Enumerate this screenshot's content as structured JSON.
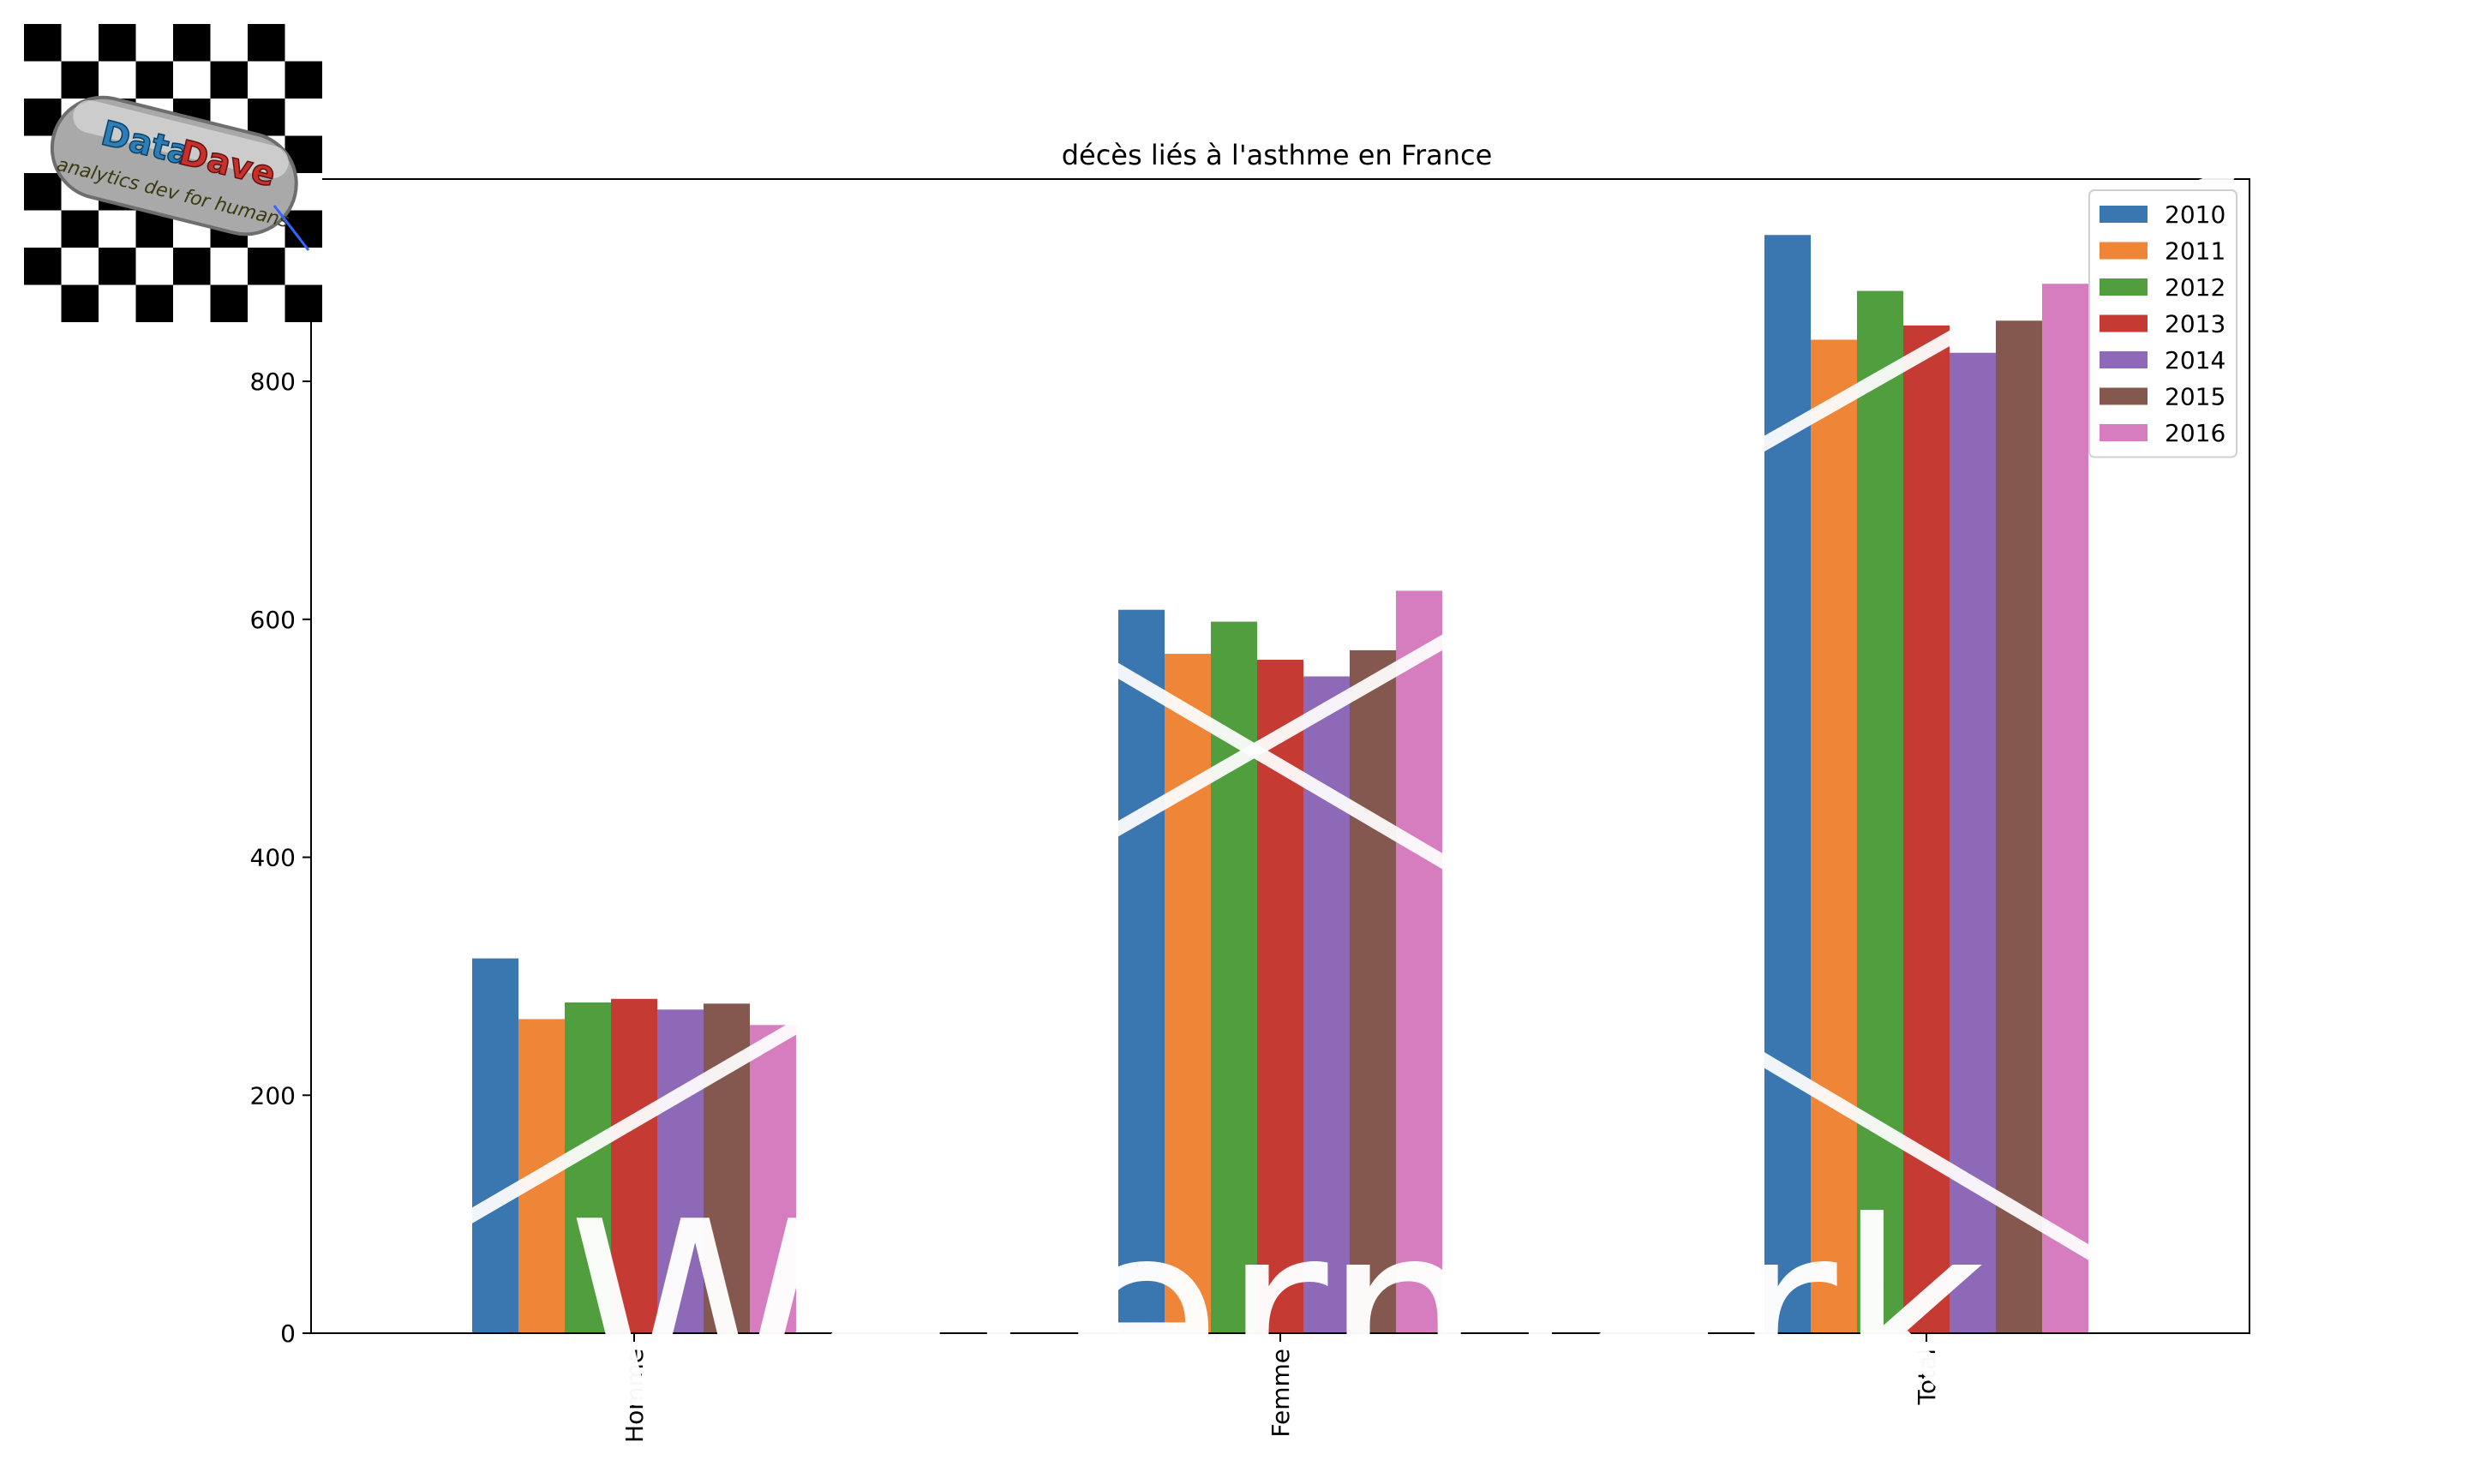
{
  "logo": {
    "brand_part1": "Data",
    "brand_part2": "Dave",
    "tagline": "analytics dev for humans"
  },
  "watermark": {
    "text": "Watermark"
  },
  "chart_data": {
    "type": "bar",
    "title": "décès liés à l'asthme en France",
    "xlabel": "",
    "ylabel": "",
    "categories": [
      "Homme",
      "Femme",
      "Total"
    ],
    "ylim": [
      0,
      970
    ],
    "yticks": [
      0,
      200,
      400,
      600,
      800
    ],
    "grid": false,
    "legend_position": "top-right",
    "series": [
      {
        "name": "2010",
        "color": "#3a76af",
        "values": [
          315,
          608,
          923
        ]
      },
      {
        "name": "2011",
        "color": "#ef8536",
        "values": [
          264,
          571,
          835
        ]
      },
      {
        "name": "2012",
        "color": "#519e3e",
        "values": [
          278,
          598,
          876
        ]
      },
      {
        "name": "2013",
        "color": "#c53a32",
        "values": [
          281,
          566,
          847
        ]
      },
      {
        "name": "2014",
        "color": "#8d69b8",
        "values": [
          272,
          552,
          824
        ]
      },
      {
        "name": "2015",
        "color": "#84584e",
        "values": [
          277,
          574,
          851
        ]
      },
      {
        "name": "2016",
        "color": "#d57dbf",
        "values": [
          259,
          624,
          882
        ]
      }
    ]
  }
}
